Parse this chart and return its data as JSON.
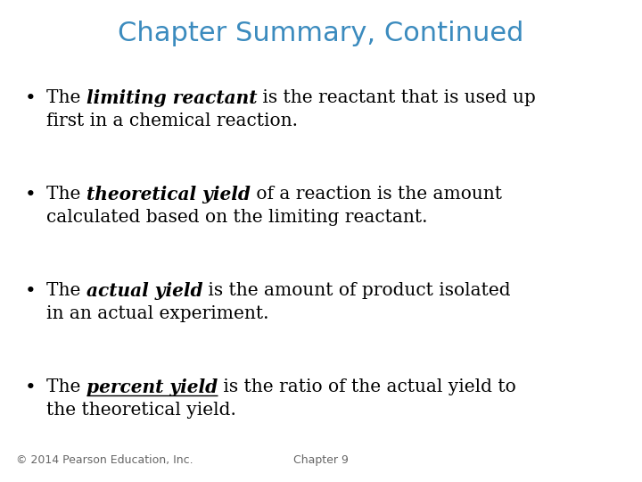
{
  "title": "Chapter Summary, Continued",
  "title_color": "#3B8BBE",
  "title_fontsize": 22,
  "background_color": "#FFFFFF",
  "text_color": "#000000",
  "footer_left": "© 2014 Pearson Education, Inc.",
  "footer_right": "Chapter 9",
  "footer_fontsize": 9,
  "bullet_fontsize": 14.5,
  "bullets": [
    {
      "prefix": "The ",
      "bold_italic": "limiting reactant",
      "suffix1": " is the reactant that is used up",
      "line2": "first in a chemical reaction.",
      "underline": false
    },
    {
      "prefix": "The ",
      "bold_italic": "theoretical yield",
      "suffix1": " of a reaction is the amount",
      "line2": "calculated based on the limiting reactant.",
      "underline": false
    },
    {
      "prefix": "The ",
      "bold_italic": "actual yield",
      "suffix1": " is the amount of product isolated",
      "line2": "in an actual experiment.",
      "underline": false
    },
    {
      "prefix": "The ",
      "bold_italic": "percent yield",
      "suffix1": " is the ratio of the actual yield to",
      "line2": "the theoretical yield.",
      "underline": true
    }
  ]
}
